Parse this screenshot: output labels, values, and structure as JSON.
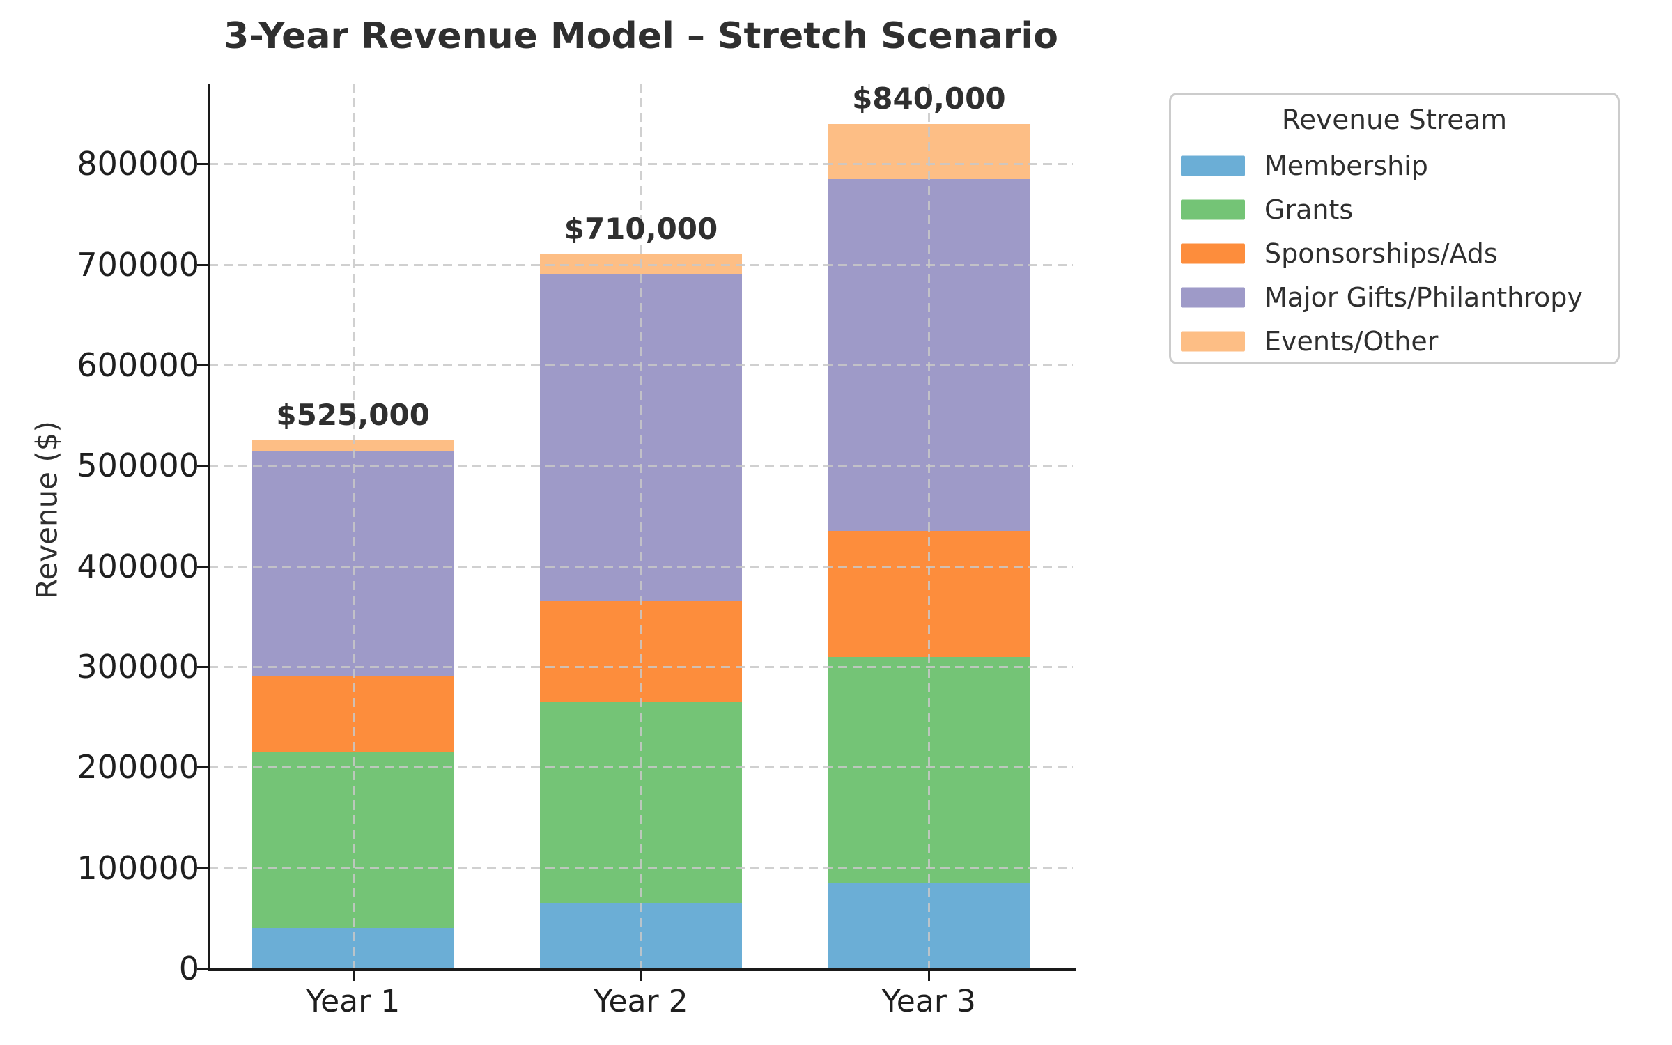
{
  "title": "3-Year Revenue Model – Stretch Scenario",
  "chart_data": {
    "type": "bar",
    "stacked": true,
    "title": "3-Year Revenue Model – Stretch Scenario",
    "xlabel": "",
    "ylabel": "Revenue ($)",
    "categories": [
      "Year 1",
      "Year 2",
      "Year 3"
    ],
    "series": [
      {
        "name": "Membership",
        "color": "#6baed6",
        "values": [
          40000,
          65000,
          85000
        ]
      },
      {
        "name": "Grants",
        "color": "#74c476",
        "values": [
          175000,
          200000,
          225000
        ]
      },
      {
        "name": "Sponsorships/Ads",
        "color": "#fd8d3c",
        "values": [
          75000,
          100000,
          125000
        ]
      },
      {
        "name": "Major Gifts/Philanthropy",
        "color": "#9e9ac8",
        "values": [
          225000,
          325000,
          350000
        ]
      },
      {
        "name": "Events/Other",
        "color": "#fdbe85",
        "values": [
          10000,
          20000,
          55000
        ]
      }
    ],
    "totals": [
      525000,
      710000,
      840000
    ],
    "total_labels": [
      "$525,000",
      "$710,000",
      "$840,000"
    ],
    "ylim": [
      0,
      880000
    ],
    "yticks": [
      0,
      100000,
      200000,
      300000,
      400000,
      500000,
      600000,
      700000,
      800000
    ],
    "ytick_labels": [
      "0",
      "100000",
      "200000",
      "300000",
      "400000",
      "500000",
      "600000",
      "700000",
      "800000"
    ],
    "legend_title": "Revenue Stream",
    "legend_position": "upper right, outside plot",
    "grid": "dashed horizontal and vertical, light gray, drawn over bars"
  }
}
